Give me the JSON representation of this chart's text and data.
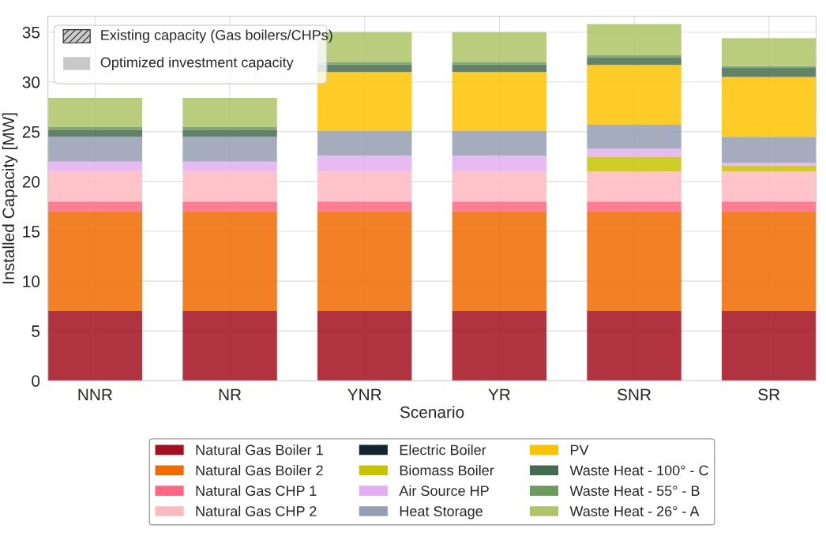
{
  "chart_data": {
    "type": "bar",
    "stacked": true,
    "xlabel": "Scenario",
    "ylabel": "Installed Capacity [MW]",
    "categories": [
      "NNR",
      "NR",
      "YNR",
      "YR",
      "SNR",
      "SR"
    ],
    "ylim": [
      0,
      36.6
    ],
    "yticks": [
      0,
      5,
      10,
      15,
      20,
      25,
      30,
      35
    ],
    "grid": true,
    "legend": "bottom",
    "annotations": [
      "Existing capacity (Gas boilers/CHPs)",
      "Optimized investment capacity"
    ],
    "series": [
      {
        "name": "Natural Gas Boiler 1",
        "color": "#a50f1e",
        "values": [
          7,
          7,
          7,
          7,
          7,
          7
        ]
      },
      {
        "name": "Natural Gas Boiler 2",
        "color": "#f06a00",
        "values": [
          10,
          10,
          10,
          10,
          10,
          10
        ]
      },
      {
        "name": "Natural Gas CHP 1",
        "color": "#ff6680",
        "values": [
          1,
          1,
          1,
          1,
          1,
          1
        ]
      },
      {
        "name": "Natural Gas CHP 2",
        "color": "#ffb8c0",
        "values": [
          3,
          3,
          3,
          3,
          3,
          3
        ]
      },
      {
        "name": "Electric Boiler",
        "color": "#13252e",
        "values": [
          0,
          0,
          0,
          0,
          0,
          0
        ]
      },
      {
        "name": "Biomass Boiler",
        "color": "#c8c300",
        "values": [
          0,
          0,
          0,
          0,
          1.5,
          0.6
        ]
      },
      {
        "name": "Air Source HP",
        "color": "#e3aef0",
        "values": [
          1.0,
          1.0,
          1.6,
          1.6,
          0.8,
          0.3
        ]
      },
      {
        "name": "Heat Storage",
        "color": "#949eb3",
        "values": [
          2.5,
          2.5,
          2.5,
          2.5,
          2.4,
          2.6
        ]
      },
      {
        "name": "PV",
        "color": "#fdc300",
        "values": [
          0,
          0,
          5.9,
          5.9,
          6.0,
          6.0
        ]
      },
      {
        "name": "Waste Heat - 100° - C",
        "color": "#466c4f",
        "values": [
          0.7,
          0.7,
          0.75,
          0.75,
          0.75,
          0.9
        ]
      },
      {
        "name": "Waste Heat - 55° - B",
        "color": "#6e9a5c",
        "values": [
          0.3,
          0.3,
          0.25,
          0.25,
          0.25,
          0.2
        ]
      },
      {
        "name": "Waste Heat - 26° - A",
        "color": "#aec466",
        "values": [
          2.9,
          2.9,
          3.0,
          3.0,
          3.1,
          2.8
        ]
      }
    ]
  }
}
